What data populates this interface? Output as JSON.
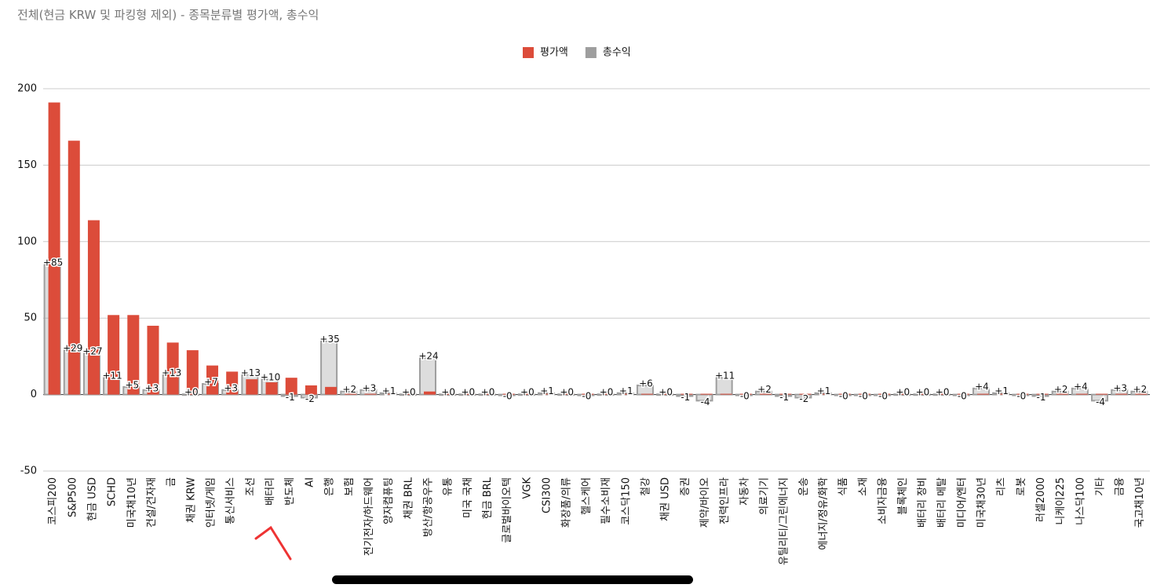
{
  "chart_data": {
    "type": "bar",
    "title": "전체(현금 KRW 및 파킹형 제외) - 종목분류별 평가액, 총수익",
    "categories": [
      "코스피200",
      "S&P500",
      "현금 USD",
      "SCHD",
      "미국채10년",
      "건설/건자재",
      "금",
      "채권 KRW",
      "인터넷/게임",
      "통신서비스",
      "조선",
      "배터리",
      "반도체",
      "AI",
      "은행",
      "보험",
      "전기전자/하드웨어",
      "양자컴퓨팅",
      "채권 BRL",
      "방산/항공우주",
      "유통",
      "미국 국채",
      "현금 BRL",
      "글로벌바이오텍",
      "VGK",
      "CSI300",
      "화장품/의류",
      "헬스케어",
      "필수소비재",
      "코스닥150",
      "철강",
      "채권 USD",
      "증권",
      "제약/바이오",
      "전력인프라",
      "자동차",
      "의료기기",
      "유틸리티/그린에너지",
      "운송",
      "에너지/정유/화학",
      "식품",
      "소재",
      "소비자금융",
      "블록체인",
      "배터리 장비",
      "배터리 메탈",
      "미디어/엔터",
      "미국채30년",
      "리츠",
      "로봇",
      "러셀2000",
      "니케이225",
      "나스닥100",
      "기타",
      "금융",
      "국고채10년"
    ],
    "series": [
      {
        "name": "총수익",
        "color": "#9e9e9e",
        "values": [
          85,
          29,
          27,
          11,
          5,
          3,
          13,
          0.2,
          7,
          3,
          13,
          10,
          -1,
          -2,
          35,
          2,
          3,
          1,
          0.2,
          24,
          0.2,
          0.2,
          0.2,
          -0.2,
          0.2,
          1,
          0.2,
          -0.2,
          0.2,
          1,
          6,
          0.2,
          -1,
          -4,
          11,
          -0.2,
          2,
          -1,
          -2,
          1,
          -0.2,
          -0.2,
          -0.2,
          0.2,
          0.2,
          0.2,
          -0.2,
          4,
          1,
          -0.2,
          -1,
          2,
          4,
          -4,
          3,
          2
        ],
        "value_labels": [
          "+85",
          "+29",
          "+27",
          "+11",
          "+5",
          "+3",
          "+13",
          "+0",
          "+7",
          "+3",
          "+13",
          "+10",
          "-1",
          "-2",
          "+35",
          "+2",
          "+3",
          "+1",
          "+0",
          "+24",
          "+0",
          "+0",
          "+0",
          "-0",
          "+0",
          "+1",
          "+0",
          "-0",
          "+0",
          "+1",
          "+6",
          "+0",
          "-1",
          "-4",
          "+11",
          "-0",
          "+2",
          "-1",
          "-2",
          "+1",
          "-0",
          "-0",
          "-0",
          "+0",
          "+0",
          "+0",
          "-0",
          "+4",
          "+1",
          "-0",
          "-1",
          "+2",
          "+4",
          "-4",
          "+3",
          "+2"
        ]
      },
      {
        "name": "평가액",
        "color": "#dc4c3a",
        "values": [
          191,
          166,
          114,
          52,
          52,
          45,
          34,
          29,
          19,
          15,
          10,
          8,
          11,
          6,
          5,
          0.5,
          0.5,
          0.5,
          0.5,
          2,
          0.5,
          0.5,
          0.5,
          0.5,
          0.5,
          0.5,
          0.5,
          0.5,
          0.5,
          0.5,
          0.5,
          0.5,
          0.5,
          0.5,
          0.5,
          0.5,
          0.5,
          0.5,
          0.5,
          0.5,
          0.5,
          0.5,
          0.5,
          0.5,
          0.5,
          0.5,
          0.5,
          0.5,
          0.5,
          0.5,
          0.5,
          0.5,
          0.5,
          0.5,
          0.5,
          0.5
        ]
      }
    ],
    "ylim": [
      -50,
      200
    ],
    "yticks": [
      -50,
      0,
      50,
      100,
      150,
      200
    ],
    "grid": true
  }
}
